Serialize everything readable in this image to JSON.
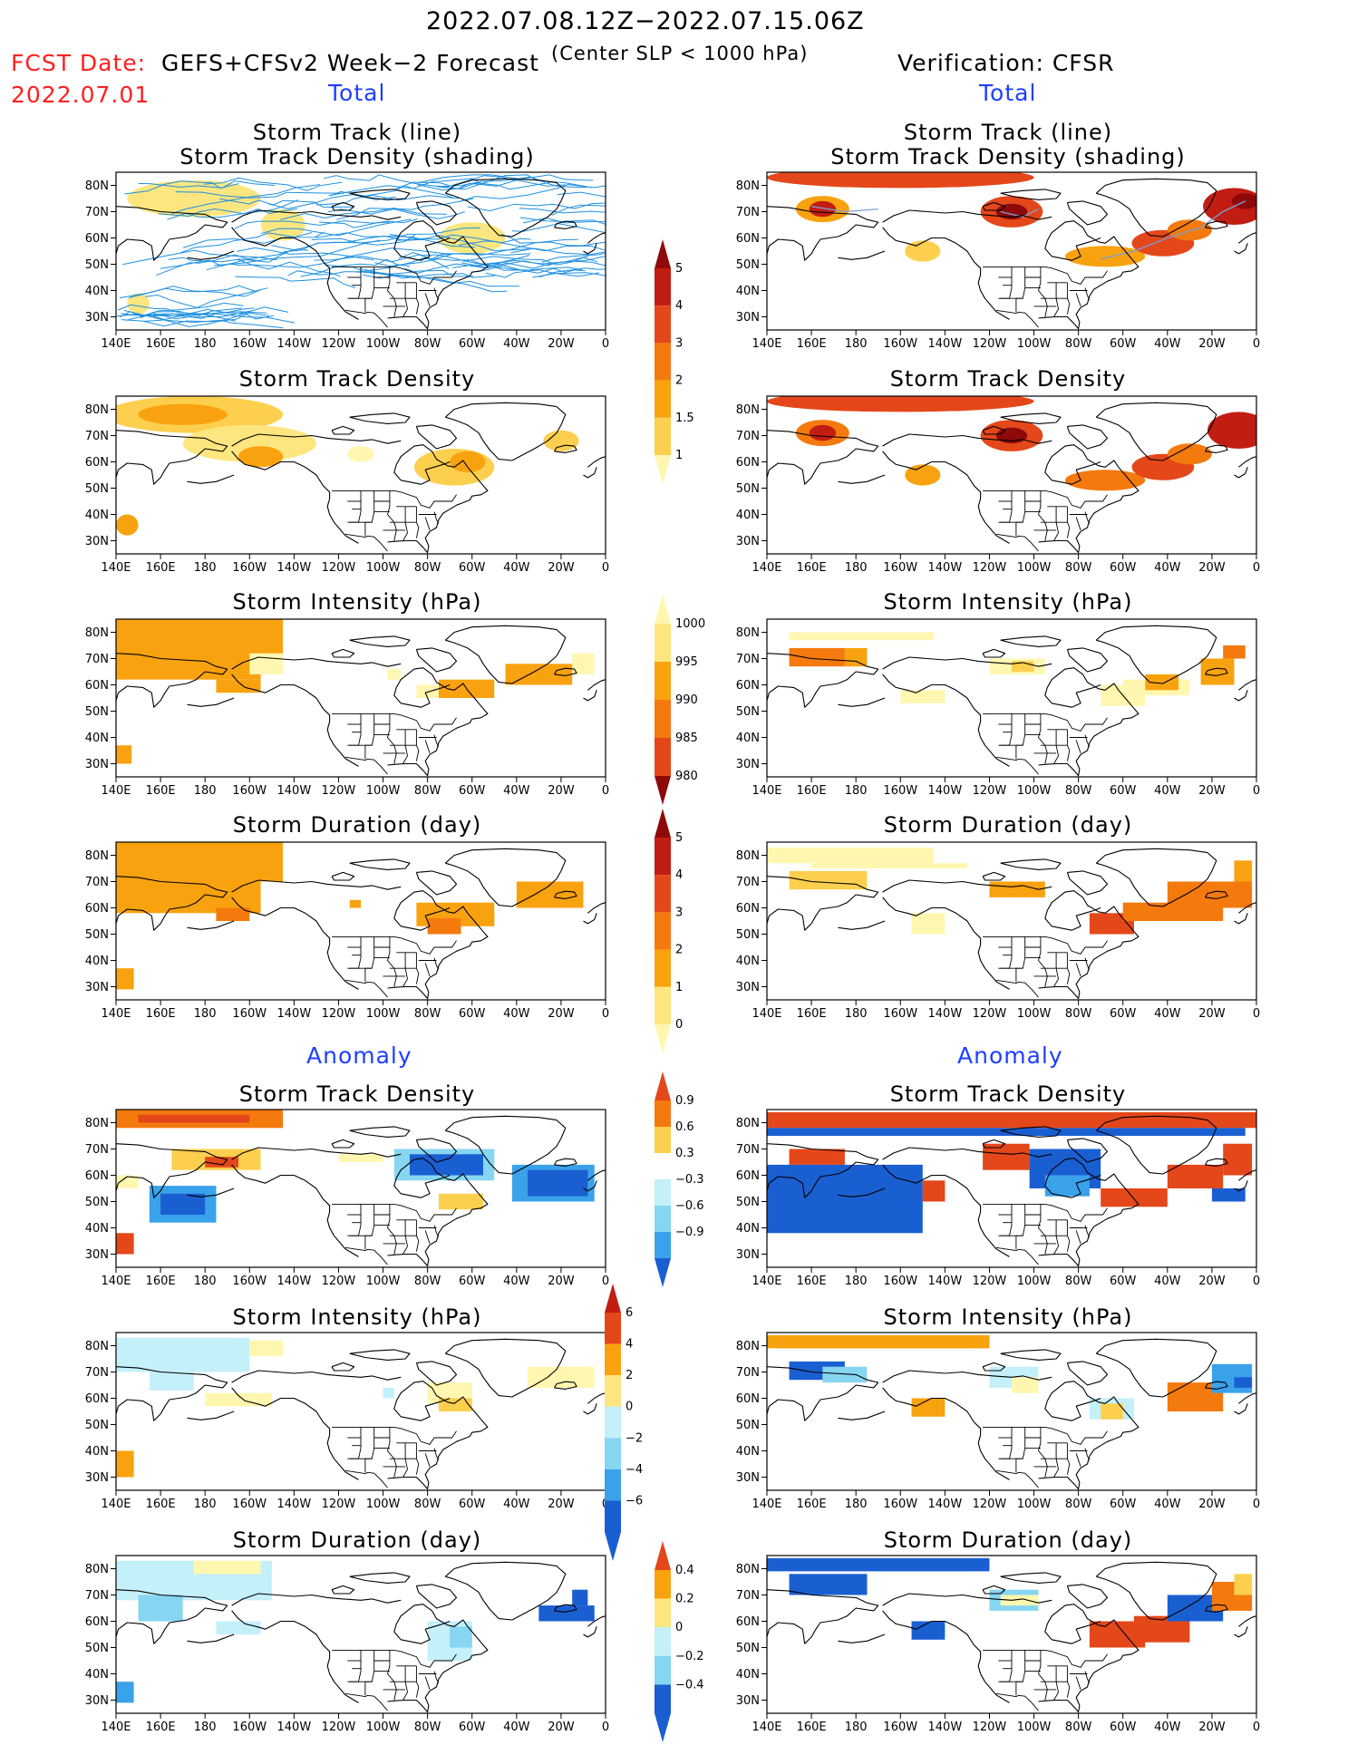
{
  "header": {
    "period": "2022.07.08.12Z−2022.07.15.06Z",
    "fcst_prefix": "FCST Date:",
    "fcst_date": "2022.07.01",
    "forecast_title": "GEFS+CFSv2 Week−2 Forecast",
    "criterion": "(Center SLP < 1000 hPa)",
    "verification": "Verification: CFSR",
    "total_left": "Total",
    "total_right": "Total",
    "anomaly_left": "Anomaly",
    "anomaly_right": "Anomaly"
  },
  "panel_titles": {
    "track_line": "Storm Track (line)",
    "track_density_shading": "Storm Track Density (shading)",
    "track_density": "Storm Track Density",
    "intensity": "Storm Intensity (hPa)",
    "duration": "Storm Duration (day)"
  },
  "axes": {
    "lat_labels": [
      "80N",
      "70N",
      "60N",
      "50N",
      "40N",
      "30N"
    ],
    "lon_labels": [
      "140E",
      "160E",
      "180",
      "160W",
      "140W",
      "120W",
      "100W",
      "80W",
      "60W",
      "40W",
      "20W",
      "0"
    ]
  },
  "colorbars": {
    "density_total": [
      "5",
      "4",
      "3",
      "2",
      "1.5",
      "1"
    ],
    "intensity_total": [
      "1000",
      "995",
      "990",
      "985",
      "980"
    ],
    "duration_total": [
      "5",
      "4",
      "3",
      "2",
      "1",
      "0"
    ],
    "density_anomaly": [
      "0.9",
      "0.6",
      "0.3",
      "−0.3",
      "−0.6",
      "−0.9"
    ],
    "intensity_anomaly": [
      "6",
      "4",
      "2",
      "0",
      "−2",
      "−4",
      "−6"
    ],
    "duration_anomaly": [
      "0.4",
      "0.2",
      "0",
      "−0.2",
      "−0.4"
    ]
  },
  "colors": {
    "warm": [
      "#fff7b0",
      "#fde680",
      "#fccf4e",
      "#f9a20f",
      "#f47a0e",
      "#e4471a",
      "#c21d12",
      "#8e0a0a"
    ],
    "cool": [
      "#c4f0fa",
      "#86d6f2",
      "#3aa2ea",
      "#1a5fd2"
    ],
    "track_line": "#1e90e0",
    "accent_red": "#ff2020",
    "accent_blue": "#1f3fff"
  }
}
